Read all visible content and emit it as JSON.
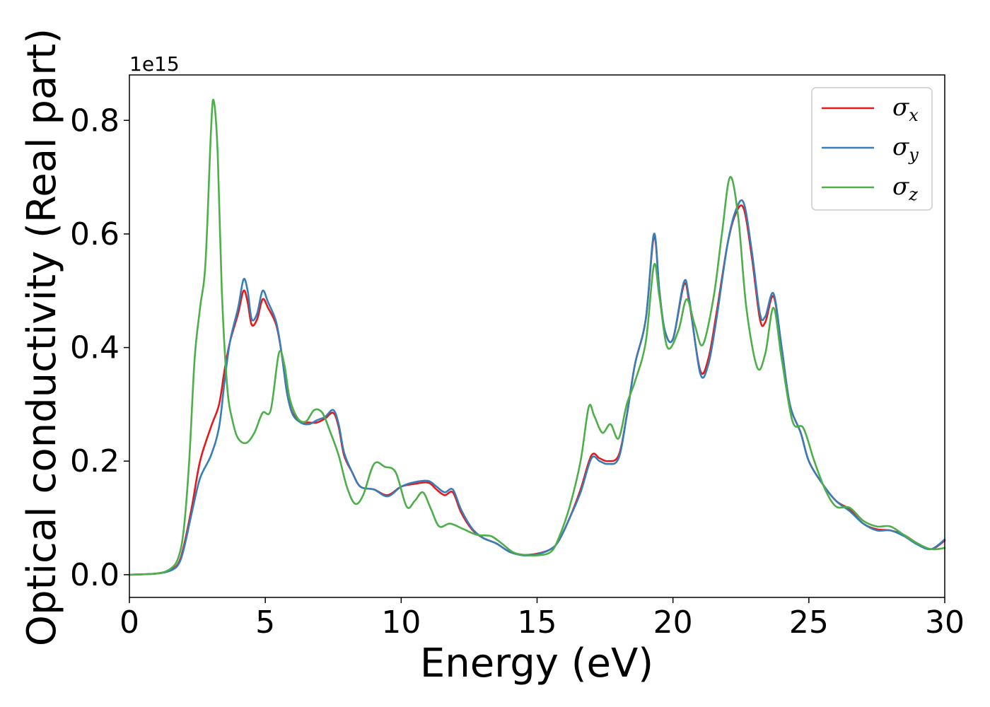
{
  "chart_data": {
    "type": "line",
    "xlabel": "Energy (eV)",
    "ylabel": "Optical conductivity (Real part)",
    "offset_text": "1e15",
    "xlim": [
      0,
      30
    ],
    "ylim": [
      -0.04,
      0.88
    ],
    "xticks": [
      0,
      5,
      10,
      15,
      20,
      25,
      30
    ],
    "yticks": [
      0.0,
      0.2,
      0.4,
      0.6,
      0.8
    ],
    "ytick_labels": [
      "0.0",
      "0.2",
      "0.4",
      "0.6",
      "0.8"
    ],
    "grid": false,
    "legend_position": "top-right",
    "series": [
      {
        "name": "σx",
        "symbol": "σ",
        "subscript": "x",
        "color": "#e41a1c",
        "points": [
          [
            0,
            0
          ],
          [
            1,
            0.002
          ],
          [
            1.5,
            0.008
          ],
          [
            1.8,
            0.02
          ],
          [
            2.0,
            0.05
          ],
          [
            2.3,
            0.12
          ],
          [
            2.6,
            0.2
          ],
          [
            3.0,
            0.26
          ],
          [
            3.3,
            0.3
          ],
          [
            3.5,
            0.36
          ],
          [
            3.7,
            0.41
          ],
          [
            4.0,
            0.46
          ],
          [
            4.2,
            0.5
          ],
          [
            4.35,
            0.48
          ],
          [
            4.5,
            0.44
          ],
          [
            4.7,
            0.45
          ],
          [
            4.9,
            0.485
          ],
          [
            5.1,
            0.47
          ],
          [
            5.4,
            0.44
          ],
          [
            5.6,
            0.39
          ],
          [
            5.8,
            0.32
          ],
          [
            6.0,
            0.285
          ],
          [
            6.3,
            0.27
          ],
          [
            6.6,
            0.268
          ],
          [
            6.9,
            0.268
          ],
          [
            7.2,
            0.275
          ],
          [
            7.5,
            0.285
          ],
          [
            7.7,
            0.26
          ],
          [
            7.9,
            0.21
          ],
          [
            8.2,
            0.18
          ],
          [
            8.5,
            0.155
          ],
          [
            9.0,
            0.15
          ],
          [
            9.5,
            0.14
          ],
          [
            10.0,
            0.155
          ],
          [
            10.5,
            0.16
          ],
          [
            11.0,
            0.162
          ],
          [
            11.3,
            0.15
          ],
          [
            11.6,
            0.14
          ],
          [
            11.9,
            0.145
          ],
          [
            12.2,
            0.11
          ],
          [
            12.6,
            0.08
          ],
          [
            13.0,
            0.065
          ],
          [
            13.5,
            0.055
          ],
          [
            14.0,
            0.04
          ],
          [
            14.5,
            0.035
          ],
          [
            15.0,
            0.037
          ],
          [
            15.5,
            0.045
          ],
          [
            15.8,
            0.06
          ],
          [
            16.2,
            0.1
          ],
          [
            16.6,
            0.15
          ],
          [
            17.0,
            0.21
          ],
          [
            17.3,
            0.205
          ],
          [
            17.6,
            0.2
          ],
          [
            18.0,
            0.21
          ],
          [
            18.3,
            0.28
          ],
          [
            18.6,
            0.37
          ],
          [
            19.0,
            0.45
          ],
          [
            19.3,
            0.595
          ],
          [
            19.5,
            0.5
          ],
          [
            19.7,
            0.43
          ],
          [
            20.0,
            0.415
          ],
          [
            20.4,
            0.51
          ],
          [
            20.6,
            0.48
          ],
          [
            21.0,
            0.36
          ],
          [
            21.3,
            0.38
          ],
          [
            21.6,
            0.46
          ],
          [
            22.0,
            0.58
          ],
          [
            22.3,
            0.635
          ],
          [
            22.6,
            0.645
          ],
          [
            22.9,
            0.56
          ],
          [
            23.2,
            0.45
          ],
          [
            23.4,
            0.445
          ],
          [
            23.7,
            0.49
          ],
          [
            24.0,
            0.4
          ],
          [
            24.3,
            0.3
          ],
          [
            24.7,
            0.25
          ],
          [
            25.0,
            0.2
          ],
          [
            25.5,
            0.16
          ],
          [
            26.0,
            0.13
          ],
          [
            26.5,
            0.115
          ],
          [
            27.0,
            0.09
          ],
          [
            27.5,
            0.08
          ],
          [
            28.0,
            0.078
          ],
          [
            28.5,
            0.07
          ],
          [
            29.0,
            0.055
          ],
          [
            29.5,
            0.045
          ],
          [
            30.0,
            0.06
          ]
        ]
      },
      {
        "name": "σy",
        "symbol": "σ",
        "subscript": "y",
        "color": "#377eb8",
        "points": [
          [
            0,
            0
          ],
          [
            1,
            0.002
          ],
          [
            1.5,
            0.007
          ],
          [
            1.8,
            0.018
          ],
          [
            2.0,
            0.045
          ],
          [
            2.3,
            0.11
          ],
          [
            2.6,
            0.17
          ],
          [
            3.0,
            0.21
          ],
          [
            3.3,
            0.26
          ],
          [
            3.5,
            0.34
          ],
          [
            3.7,
            0.41
          ],
          [
            4.0,
            0.47
          ],
          [
            4.2,
            0.52
          ],
          [
            4.35,
            0.5
          ],
          [
            4.5,
            0.45
          ],
          [
            4.7,
            0.46
          ],
          [
            4.9,
            0.5
          ],
          [
            5.1,
            0.48
          ],
          [
            5.4,
            0.445
          ],
          [
            5.6,
            0.39
          ],
          [
            5.8,
            0.32
          ],
          [
            6.0,
            0.283
          ],
          [
            6.3,
            0.268
          ],
          [
            6.6,
            0.265
          ],
          [
            6.9,
            0.272
          ],
          [
            7.2,
            0.278
          ],
          [
            7.5,
            0.29
          ],
          [
            7.7,
            0.265
          ],
          [
            7.9,
            0.215
          ],
          [
            8.2,
            0.18
          ],
          [
            8.5,
            0.155
          ],
          [
            9.0,
            0.15
          ],
          [
            9.5,
            0.138
          ],
          [
            10.0,
            0.155
          ],
          [
            10.5,
            0.163
          ],
          [
            11.0,
            0.165
          ],
          [
            11.3,
            0.155
          ],
          [
            11.6,
            0.145
          ],
          [
            11.9,
            0.15
          ],
          [
            12.2,
            0.115
          ],
          [
            12.6,
            0.082
          ],
          [
            13.0,
            0.065
          ],
          [
            13.5,
            0.055
          ],
          [
            14.0,
            0.04
          ],
          [
            14.5,
            0.034
          ],
          [
            15.0,
            0.036
          ],
          [
            15.5,
            0.045
          ],
          [
            15.8,
            0.06
          ],
          [
            16.2,
            0.1
          ],
          [
            16.6,
            0.145
          ],
          [
            17.0,
            0.205
          ],
          [
            17.3,
            0.2
          ],
          [
            17.6,
            0.195
          ],
          [
            18.0,
            0.205
          ],
          [
            18.3,
            0.28
          ],
          [
            18.6,
            0.37
          ],
          [
            19.0,
            0.45
          ],
          [
            19.3,
            0.6
          ],
          [
            19.5,
            0.5
          ],
          [
            19.7,
            0.43
          ],
          [
            20.0,
            0.415
          ],
          [
            20.4,
            0.515
          ],
          [
            20.6,
            0.485
          ],
          [
            21.0,
            0.355
          ],
          [
            21.3,
            0.37
          ],
          [
            21.6,
            0.45
          ],
          [
            22.0,
            0.58
          ],
          [
            22.3,
            0.64
          ],
          [
            22.6,
            0.655
          ],
          [
            22.9,
            0.57
          ],
          [
            23.2,
            0.46
          ],
          [
            23.4,
            0.455
          ],
          [
            23.7,
            0.495
          ],
          [
            24.0,
            0.4
          ],
          [
            24.3,
            0.3
          ],
          [
            24.7,
            0.25
          ],
          [
            25.0,
            0.2
          ],
          [
            25.5,
            0.16
          ],
          [
            26.0,
            0.13
          ],
          [
            26.5,
            0.112
          ],
          [
            27.0,
            0.09
          ],
          [
            27.5,
            0.078
          ],
          [
            28.0,
            0.078
          ],
          [
            28.5,
            0.068
          ],
          [
            29.0,
            0.053
          ],
          [
            29.5,
            0.045
          ],
          [
            30.0,
            0.062
          ]
        ]
      },
      {
        "name": "σz",
        "symbol": "σ",
        "subscript": "z",
        "color": "#4daf4a",
        "points": [
          [
            0,
            0
          ],
          [
            1,
            0.002
          ],
          [
            1.5,
            0.01
          ],
          [
            1.8,
            0.03
          ],
          [
            2.0,
            0.08
          ],
          [
            2.2,
            0.2
          ],
          [
            2.4,
            0.38
          ],
          [
            2.6,
            0.47
          ],
          [
            2.8,
            0.55
          ],
          [
            3.0,
            0.78
          ],
          [
            3.1,
            0.835
          ],
          [
            3.25,
            0.74
          ],
          [
            3.4,
            0.5
          ],
          [
            3.6,
            0.33
          ],
          [
            3.8,
            0.27
          ],
          [
            4.0,
            0.24
          ],
          [
            4.3,
            0.232
          ],
          [
            4.6,
            0.25
          ],
          [
            4.9,
            0.285
          ],
          [
            5.2,
            0.29
          ],
          [
            5.5,
            0.39
          ],
          [
            5.7,
            0.37
          ],
          [
            5.9,
            0.31
          ],
          [
            6.2,
            0.275
          ],
          [
            6.5,
            0.27
          ],
          [
            6.8,
            0.29
          ],
          [
            7.1,
            0.285
          ],
          [
            7.4,
            0.25
          ],
          [
            7.7,
            0.21
          ],
          [
            8.0,
            0.155
          ],
          [
            8.3,
            0.125
          ],
          [
            8.6,
            0.14
          ],
          [
            9.0,
            0.195
          ],
          [
            9.4,
            0.19
          ],
          [
            9.8,
            0.18
          ],
          [
            10.2,
            0.12
          ],
          [
            10.5,
            0.13
          ],
          [
            10.8,
            0.145
          ],
          [
            11.1,
            0.115
          ],
          [
            11.4,
            0.085
          ],
          [
            11.8,
            0.09
          ],
          [
            12.3,
            0.08
          ],
          [
            12.8,
            0.07
          ],
          [
            13.3,
            0.068
          ],
          [
            13.7,
            0.055
          ],
          [
            14.1,
            0.04
          ],
          [
            14.5,
            0.035
          ],
          [
            15.0,
            0.034
          ],
          [
            15.5,
            0.04
          ],
          [
            15.8,
            0.065
          ],
          [
            16.2,
            0.12
          ],
          [
            16.6,
            0.2
          ],
          [
            16.9,
            0.295
          ],
          [
            17.1,
            0.28
          ],
          [
            17.4,
            0.25
          ],
          [
            17.7,
            0.265
          ],
          [
            18.0,
            0.24
          ],
          [
            18.3,
            0.3
          ],
          [
            18.6,
            0.34
          ],
          [
            19.0,
            0.41
          ],
          [
            19.3,
            0.545
          ],
          [
            19.5,
            0.49
          ],
          [
            19.8,
            0.4
          ],
          [
            20.2,
            0.43
          ],
          [
            20.5,
            0.485
          ],
          [
            20.8,
            0.44
          ],
          [
            21.1,
            0.405
          ],
          [
            21.5,
            0.49
          ],
          [
            21.8,
            0.6
          ],
          [
            22.1,
            0.7
          ],
          [
            22.4,
            0.63
          ],
          [
            22.7,
            0.47
          ],
          [
            23.1,
            0.365
          ],
          [
            23.4,
            0.39
          ],
          [
            23.7,
            0.47
          ],
          [
            24.0,
            0.38
          ],
          [
            24.4,
            0.27
          ],
          [
            24.8,
            0.258
          ],
          [
            25.2,
            0.2
          ],
          [
            25.6,
            0.15
          ],
          [
            26.0,
            0.12
          ],
          [
            26.5,
            0.118
          ],
          [
            27.0,
            0.095
          ],
          [
            27.5,
            0.085
          ],
          [
            28.0,
            0.085
          ],
          [
            28.5,
            0.07
          ],
          [
            29.0,
            0.055
          ],
          [
            29.5,
            0.045
          ],
          [
            30.0,
            0.047
          ]
        ]
      }
    ]
  }
}
